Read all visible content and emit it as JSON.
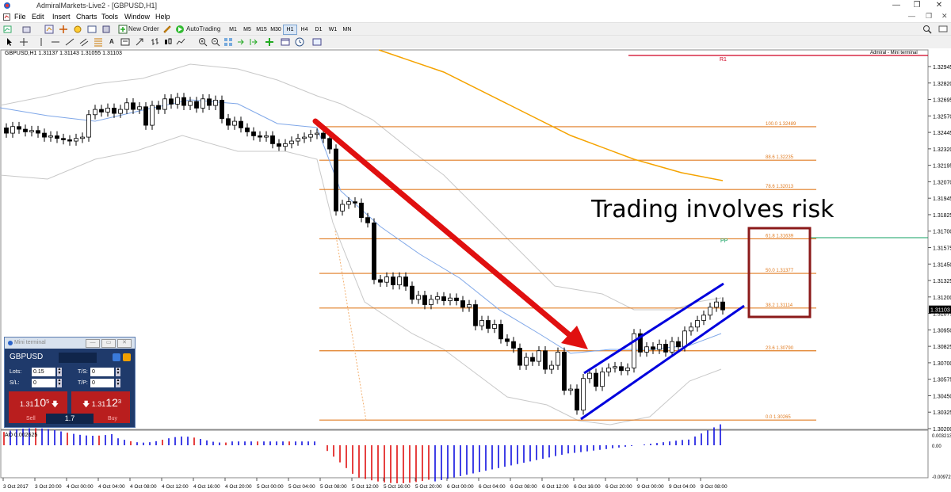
{
  "window": {
    "title": "AdmiralMarkets-Live2 - [GBPUSD,H1]",
    "controls": {
      "minimize": "—",
      "maximize": "❐",
      "close": "✕"
    }
  },
  "menu": [
    "File",
    "Edit",
    "View",
    "Insert",
    "Charts",
    "Tools",
    "Window",
    "Help"
  ],
  "toolbar": {
    "new_order": "New Order",
    "autotrading": "AutoTrading",
    "timeframes": [
      "M1",
      "M5",
      "M15",
      "M30",
      "H1",
      "H4",
      "D1",
      "W1",
      "MN"
    ],
    "active_timeframe": "H1"
  },
  "chart": {
    "header": "GBPUSD,H1  1.31137 1.31143 1.31055 1.31103",
    "top_right_label": "Admiral - Mini terminal",
    "annotation": "Trading involves risk",
    "pivot_labels": {
      "r1": "R1",
      "pp": "PP"
    },
    "current_price": "1.31103",
    "fib_levels": [
      {
        "label": "100.0  1.32489",
        "value": 1.32489
      },
      {
        "label": "88.6  1.32235",
        "value": 1.32235
      },
      {
        "label": "78.6  1.32013",
        "value": 1.32013
      },
      {
        "label": "61.8  1.31639",
        "value": 1.31639
      },
      {
        "label": "50.0  1.31377",
        "value": 1.31377
      },
      {
        "label": "38.2  1.31114",
        "value": 1.31114
      },
      {
        "label": "23.6  1.30790",
        "value": 1.3079
      },
      {
        "label": "0.0  1.30265",
        "value": 1.30265
      }
    ],
    "price_axis": [
      "1.32945",
      "1.32820",
      "1.32695",
      "1.32570",
      "1.32445",
      "1.32320",
      "1.32195",
      "1.32070",
      "1.31945",
      "1.31825",
      "1.31700",
      "1.31575",
      "1.31450",
      "1.31325",
      "1.31200",
      "1.31075",
      "1.30950",
      "1.30825",
      "1.30700",
      "1.30575",
      "1.30450",
      "1.30325",
      "1.30200"
    ],
    "time_axis": [
      "3 Oct 2017",
      "3 Oct 20:00",
      "4 Oct 00:00",
      "4 Oct 04:00",
      "4 Oct 08:00",
      "4 Oct 12:00",
      "4 Oct 16:00",
      "4 Oct 20:00",
      "5 Oct 00:00",
      "5 Oct 04:00",
      "5 Oct 08:00",
      "5 Oct 12:00",
      "5 Oct 16:00",
      "5 Oct 20:00",
      "6 Oct 00:00",
      "6 Oct 04:00",
      "6 Oct 08:00",
      "6 Oct 12:00",
      "6 Oct 16:00",
      "6 Oct 20:00",
      "9 Oct 00:00",
      "9 Oct 04:00",
      "9 Oct 08:00"
    ],
    "ao": {
      "label": "AO 0.002625",
      "axis": [
        "0.003213",
        "0.00",
        "-0.009721"
      ]
    }
  },
  "mini_terminal": {
    "title": "Mini terminal",
    "symbol": "GBPUSD",
    "lots_label": "Lots:",
    "lots_value": "0.15",
    "sl_label": "S/L:",
    "sl_value": "0",
    "ts_label": "T/S:",
    "ts_value": "0",
    "tp_label": "T/P:",
    "tp_value": "0",
    "sell_prefix": "1.31",
    "sell_big": "10",
    "sell_sup": "5",
    "buy_prefix": "1.31",
    "buy_big": "12",
    "buy_sup": "3",
    "sell_label": "Sell",
    "buy_label": "Buy",
    "volume": "1.7"
  },
  "colors": {
    "fib": "#e07b20",
    "arrow": "#e01010",
    "channel": "#0000dd",
    "box": "#8b1a1a",
    "ma_long": "#f5a300",
    "ma_short": "#7fa7e8",
    "bands": "#c8c8c8",
    "r1": "#d00020",
    "pp": "#10a060",
    "ao_up": "#1010e0",
    "ao_down": "#e01010"
  }
}
